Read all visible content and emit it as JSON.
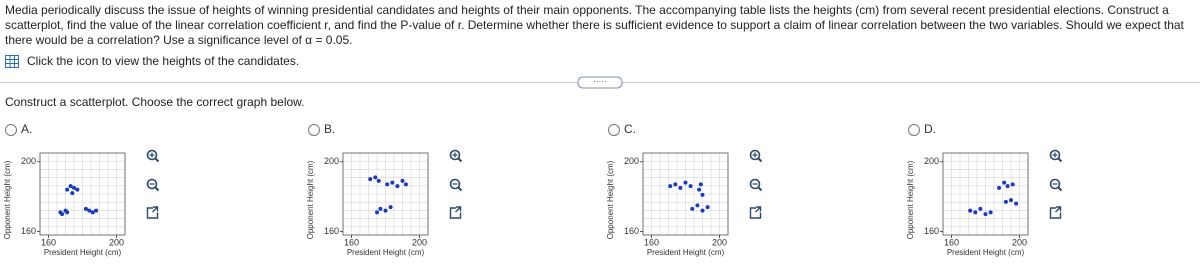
{
  "question": "Media periodically discuss the issue of heights of winning presidential candidates and heights of their main opponents. The accompanying table lists the heights (cm) from several recent presidential elections. Construct a scatterplot, find the value of the linear correlation coefficient r, and find the P-value of r. Determine whether there is sufficient evidence to support a claim of linear correlation between the two variables. Should we expect that there would be a correlation? Use a significance level of α = 0.05.",
  "link_text": "Click the icon to view the heights of the candidates.",
  "prompt": "Construct a scatterplot. Choose the correct graph below.",
  "options": [
    {
      "letter": "A.",
      "chart": {
        "type": "scatter",
        "xlabel": "President Height (cm)",
        "ylabel": "Opponent Height (cm)",
        "color": "#1a3bc1",
        "x": [
          167,
          168,
          170,
          171,
          171,
          173,
          175,
          177,
          174,
          182,
          184,
          186,
          188
        ],
        "values": [
          171,
          170,
          172,
          171,
          184,
          186,
          185,
          184,
          182,
          173,
          172,
          171,
          172
        ],
        "xlim": [
          155,
          205
        ],
        "ylim": [
          158,
          205
        ],
        "xticks": [
          160,
          200
        ],
        "yticks": [
          160,
          200
        ]
      }
    },
    {
      "letter": "B.",
      "chart": {
        "type": "scatter",
        "xlabel": "President Height (cm)",
        "ylabel": "Opponent Height (cm)",
        "color": "#1a3bc1",
        "x": [
          171,
          174,
          176,
          181,
          184,
          187,
          190,
          192,
          175,
          177,
          180,
          183
        ],
        "values": [
          190,
          191,
          189,
          187,
          188,
          186,
          189,
          187,
          171,
          173,
          172,
          174
        ],
        "xlim": [
          155,
          205
        ],
        "ylim": [
          158,
          205
        ],
        "xticks": [
          160,
          200
        ],
        "yticks": [
          160,
          200
        ]
      }
    },
    {
      "letter": "C.",
      "chart": {
        "type": "scatter",
        "xlabel": "President Height (cm)",
        "ylabel": "Opponent Height (cm)",
        "color": "#1a3bc1",
        "x": [
          171,
          174,
          177,
          180,
          183,
          188,
          190,
          189,
          184,
          187,
          190,
          193
        ],
        "values": [
          186,
          187,
          185,
          188,
          186,
          184,
          181,
          187,
          173,
          175,
          172,
          174
        ],
        "xlim": [
          155,
          205
        ],
        "ylim": [
          158,
          205
        ],
        "xticks": [
          160,
          200
        ],
        "yticks": [
          160,
          200
        ]
      }
    },
    {
      "letter": "D.",
      "chart": {
        "type": "scatter",
        "xlabel": "President Height (cm)",
        "ylabel": "Opponent Height (cm)",
        "color": "#1a3bc1",
        "x": [
          188,
          191,
          193,
          196,
          192,
          195,
          198,
          171,
          174,
          177,
          180,
          183
        ],
        "values": [
          185,
          188,
          186,
          187,
          177,
          178,
          176,
          172,
          171,
          173,
          170,
          171
        ],
        "xlim": [
          155,
          205
        ],
        "ylim": [
          158,
          205
        ],
        "xticks": [
          160,
          200
        ],
        "yticks": [
          160,
          200
        ]
      }
    }
  ]
}
